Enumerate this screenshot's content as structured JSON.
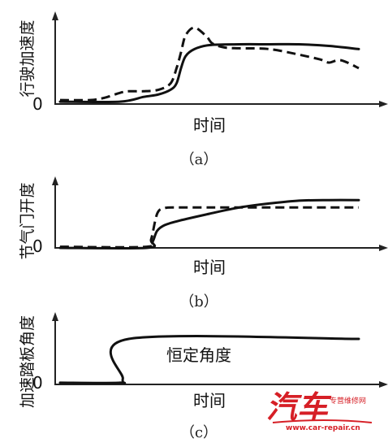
{
  "chart_data": [
    {
      "type": "line",
      "caption": "（a）",
      "ylabel": "行驶加速度",
      "xlabel": "时间",
      "y_origin_label": "0",
      "xlim": [
        0,
        10
      ],
      "ylim": [
        0,
        10
      ],
      "series": [
        {
          "style": "solid",
          "x": [
            0.0,
            2.0,
            2.8,
            3.3,
            3.7,
            3.9,
            4.05,
            4.2,
            4.5,
            5.0,
            6.0,
            7.0,
            8.0,
            9.0,
            10.0
          ],
          "y": [
            0.3,
            0.3,
            0.9,
            1.2,
            1.8,
            2.6,
            4.5,
            6.0,
            6.9,
            7.4,
            7.5,
            7.5,
            7.5,
            7.3,
            6.9
          ]
        },
        {
          "style": "dashed",
          "x": [
            0.0,
            1.0,
            1.5,
            2.0,
            2.3,
            2.8,
            3.3,
            3.7,
            3.9,
            4.05,
            4.2,
            4.5,
            4.9,
            5.1,
            5.5,
            6.0,
            7.0,
            8.0,
            8.7,
            9.0,
            9.4,
            10.0
          ],
          "y": [
            0.5,
            0.5,
            0.8,
            1.4,
            1.6,
            1.6,
            1.8,
            2.6,
            4.5,
            6.5,
            8.6,
            9.6,
            8.5,
            7.6,
            7.1,
            7.0,
            6.9,
            6.2,
            5.6,
            5.2,
            5.5,
            4.5
          ]
        }
      ]
    },
    {
      "type": "line",
      "caption": "（b）",
      "ylabel": "节气门开度",
      "xlabel": "时间",
      "y_origin_label": "0",
      "xlim": [
        0,
        10
      ],
      "ylim": [
        0,
        10
      ],
      "series": [
        {
          "style": "solid",
          "x": [
            0.0,
            2.9,
            3.1,
            3.25,
            3.5,
            4.0,
            5.0,
            6.0,
            7.0,
            8.0,
            9.0,
            10.0
          ],
          "y": [
            0.0,
            0.0,
            1.1,
            3.0,
            4.0,
            4.8,
            6.0,
            7.1,
            7.8,
            8.3,
            8.4,
            8.4
          ]
        },
        {
          "style": "dashed",
          "x": [
            0.0,
            2.9,
            3.05,
            3.25,
            3.5,
            4.0,
            5.0,
            6.0,
            7.0,
            8.0,
            9.0,
            10.0
          ],
          "y": [
            0.2,
            0.2,
            1.5,
            6.0,
            7.0,
            7.1,
            7.1,
            7.1,
            7.1,
            7.1,
            7.1,
            7.1
          ]
        }
      ]
    },
    {
      "type": "line",
      "caption": "（c）",
      "ylabel": "加速踏板角度",
      "xlabel": "时间",
      "y_origin_label": "0",
      "annotation": "恒定角度",
      "xlim": [
        0,
        10
      ],
      "ylim": [
        0,
        10
      ],
      "series": [
        {
          "style": "solid",
          "x": [
            0.0,
            2.0,
            2.1,
            2.3,
            10.0
          ],
          "y": [
            0.3,
            0.3,
            1.0,
            8.0,
            8.0
          ]
        }
      ]
    }
  ],
  "watermark": {
    "text": "汽车",
    "subtitle": "专营维修网",
    "url": "www.car-repair.cn",
    "color": "#d61f26"
  },
  "colors": {
    "ink": "#111111",
    "axis": "#222222"
  }
}
